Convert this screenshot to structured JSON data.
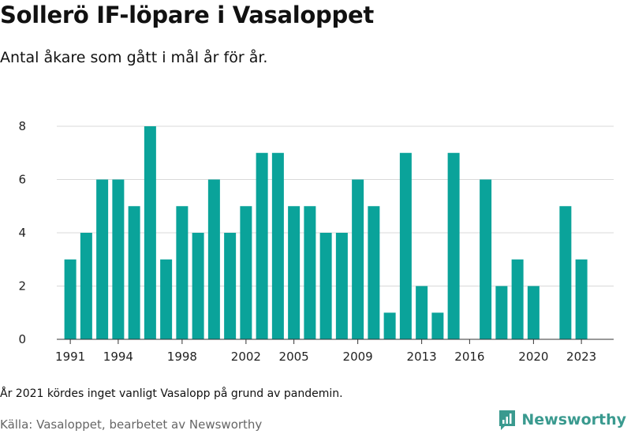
{
  "header": {
    "title": "Sollerö IF-löpare i Vasaloppet",
    "subtitle": "Antal åkare som gått i mål år för år."
  },
  "footer": {
    "note": "År 2021 kördes inget vanligt Vasalopp på grund av pandemin.",
    "source": "Källa: Vasaloppet, bearbetet av Newsworthy",
    "brand": "Newsworthy",
    "brand_icon": "newsworthy-logo-icon"
  },
  "colors": {
    "bar": "#0aa39a",
    "grid": "#d9d9d9",
    "axis": "#333333",
    "brand": "#3a9a8f"
  },
  "chart_data": {
    "type": "bar",
    "title": "Sollerö IF-löpare i Vasaloppet",
    "xlabel": "",
    "ylabel": "",
    "ylim": [
      0,
      8
    ],
    "yticks": [
      0,
      2,
      4,
      6,
      8
    ],
    "xticks": [
      1991,
      1994,
      1998,
      2002,
      2005,
      2009,
      2013,
      2016,
      2020,
      2023
    ],
    "grid": true,
    "categories": [
      1991,
      1992,
      1993,
      1994,
      1995,
      1996,
      1997,
      1998,
      1999,
      2000,
      2001,
      2002,
      2003,
      2004,
      2005,
      2006,
      2007,
      2008,
      2009,
      2010,
      2011,
      2012,
      2013,
      2014,
      2015,
      2016,
      2017,
      2018,
      2019,
      2020,
      2021,
      2022,
      2023
    ],
    "values": [
      3,
      4,
      6,
      6,
      5,
      8,
      3,
      5,
      4,
      6,
      4,
      5,
      7,
      7,
      5,
      5,
      4,
      4,
      6,
      5,
      1,
      7,
      2,
      1,
      7,
      0,
      6,
      2,
      3,
      2,
      0,
      5,
      3
    ]
  }
}
